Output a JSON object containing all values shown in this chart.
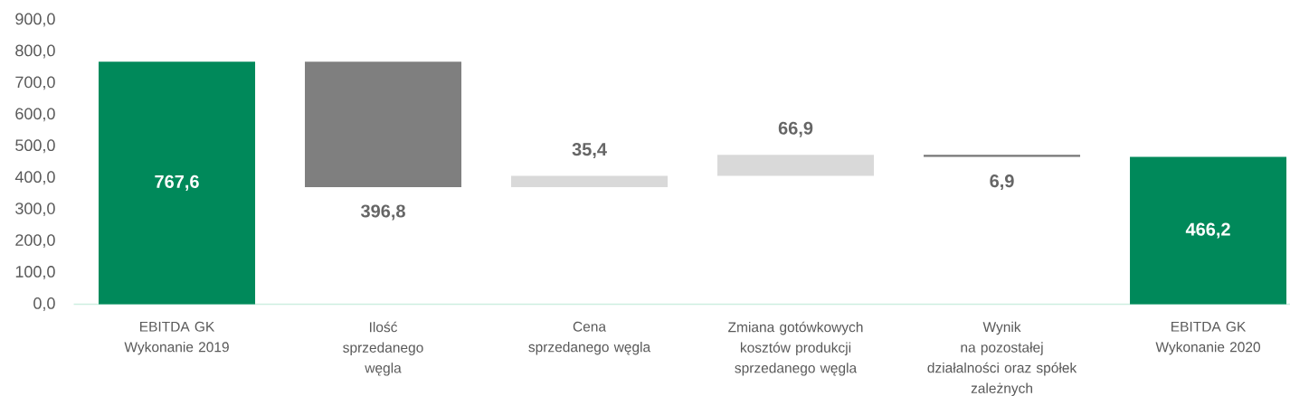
{
  "chart_data": {
    "type": "bar",
    "categories": [
      "EBITDA GK\nWykonanie 2019",
      "Ilość\nsprzedanego\nwęgla",
      "Cena\nsprzedanego węgla",
      "Zmiana gotówkowych\nkosztów produkcji\nsprzedanego węgla",
      "Wynik\nna pozostałej\ndziałalności oraz spółek\nzależnych",
      "EBITDA GK\nWykonanie 2020"
    ],
    "values": [
      767.6,
      396.8,
      35.4,
      66.9,
      6.9,
      466.2
    ],
    "base": [
      0,
      370.8,
      370.8,
      406.2,
      466.2,
      0
    ],
    "colors": [
      "#00895a",
      "#7f7f7f",
      "#d9d9d9",
      "#d9d9d9",
      "#767676",
      "#00895a"
    ],
    "value_labels": [
      "767,6",
      "396,8",
      "35,4",
      "66,9",
      "6,9",
      "466,2"
    ],
    "ylim": [
      0,
      900
    ],
    "yticks": [
      {
        "value": 0,
        "label": "0,0"
      },
      {
        "value": 100,
        "label": "100,0"
      },
      {
        "value": 200,
        "label": "200,0"
      },
      {
        "value": 300,
        "label": "300,0"
      },
      {
        "value": 400,
        "label": "400,0"
      },
      {
        "value": 500,
        "label": "500,0"
      },
      {
        "value": 600,
        "label": "600,0"
      },
      {
        "value": 700,
        "label": "700,0"
      },
      {
        "value": 800,
        "label": "800,0"
      },
      {
        "value": 900,
        "label": "900,0"
      }
    ]
  }
}
